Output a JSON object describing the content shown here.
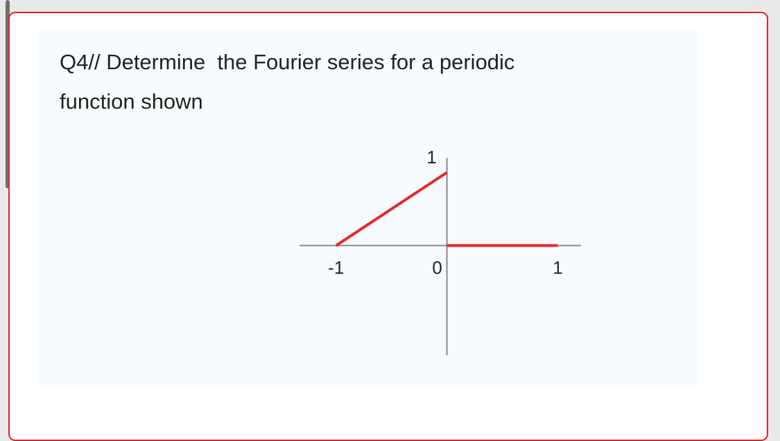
{
  "question": {
    "lines": [
      "Q4// Determine  the Fourier series for a periodic",
      "function shown"
    ]
  },
  "chart_data": {
    "type": "line",
    "series": [
      {
        "color": "#e8262a",
        "x": [
          -1,
          0
        ],
        "values": [
          0,
          1
        ]
      },
      {
        "color": "#e8262a",
        "x": [
          0,
          1
        ],
        "values": [
          0,
          0
        ]
      }
    ],
    "xlim": [
      -1.33,
      1.21
    ],
    "ylim": [
      -1.5,
      1.2
    ],
    "xticks": [
      -1,
      0,
      1
    ],
    "yticks": [
      1
    ]
  }
}
